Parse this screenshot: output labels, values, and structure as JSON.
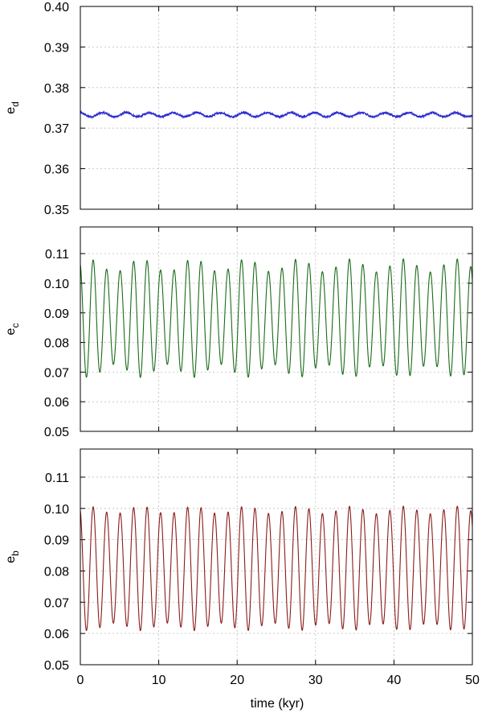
{
  "figure": {
    "xlabel": "time (kyr)"
  },
  "chart_data": [
    {
      "type": "line",
      "ylabel": "e",
      "ylabel_sub": "d",
      "xlim": [
        0,
        50
      ],
      "ylim": [
        0.35,
        0.4
      ],
      "x_ticks": [
        "0",
        "10",
        "20",
        "30",
        "40",
        "50"
      ],
      "y_ticks": [
        "0.35",
        "0.36",
        "0.37",
        "0.38",
        "0.39",
        "0.40"
      ],
      "grid": true,
      "series": [
        {
          "color": "#2b2bd0",
          "mean": 0.3733,
          "amplitude": 0.0005,
          "period_kyr": 3.0,
          "envelope_amplitude": 0.0,
          "envelope_period_kyr": 10.0,
          "noise": 0.00025
        }
      ]
    },
    {
      "type": "line",
      "ylabel": "e",
      "ylabel_sub": "c",
      "xlim": [
        0,
        50
      ],
      "ylim": [
        0.05,
        0.119
      ],
      "x_ticks": [
        "0",
        "10",
        "20",
        "30",
        "40",
        "50"
      ],
      "y_ticks": [
        "0.05",
        "0.06",
        "0.07",
        "0.08",
        "0.09",
        "0.10",
        "0.11"
      ],
      "grid": true,
      "series": [
        {
          "color": "#1a6b1a",
          "mean": 0.0882,
          "amplitude": 0.0178,
          "period_kyr": 1.72,
          "envelope_amplitude": 0.0022,
          "envelope_period_kyr": 6.7,
          "noise": 0.0
        }
      ]
    },
    {
      "type": "line",
      "ylabel": "e",
      "ylabel_sub": "b",
      "xlim": [
        0,
        50
      ],
      "ylim": [
        0.05,
        0.119
      ],
      "x_ticks": [
        "0",
        "10",
        "20",
        "30",
        "40",
        "50"
      ],
      "y_ticks": [
        "0.05",
        "0.06",
        "0.07",
        "0.08",
        "0.09",
        "0.10",
        "0.11"
      ],
      "grid": true,
      "series": [
        {
          "color": "#8b1a1a",
          "mean": 0.0808,
          "amplitude": 0.0187,
          "period_kyr": 1.72,
          "envelope_amplitude": 0.0012,
          "envelope_period_kyr": 6.7,
          "noise": 0.0
        }
      ]
    }
  ]
}
